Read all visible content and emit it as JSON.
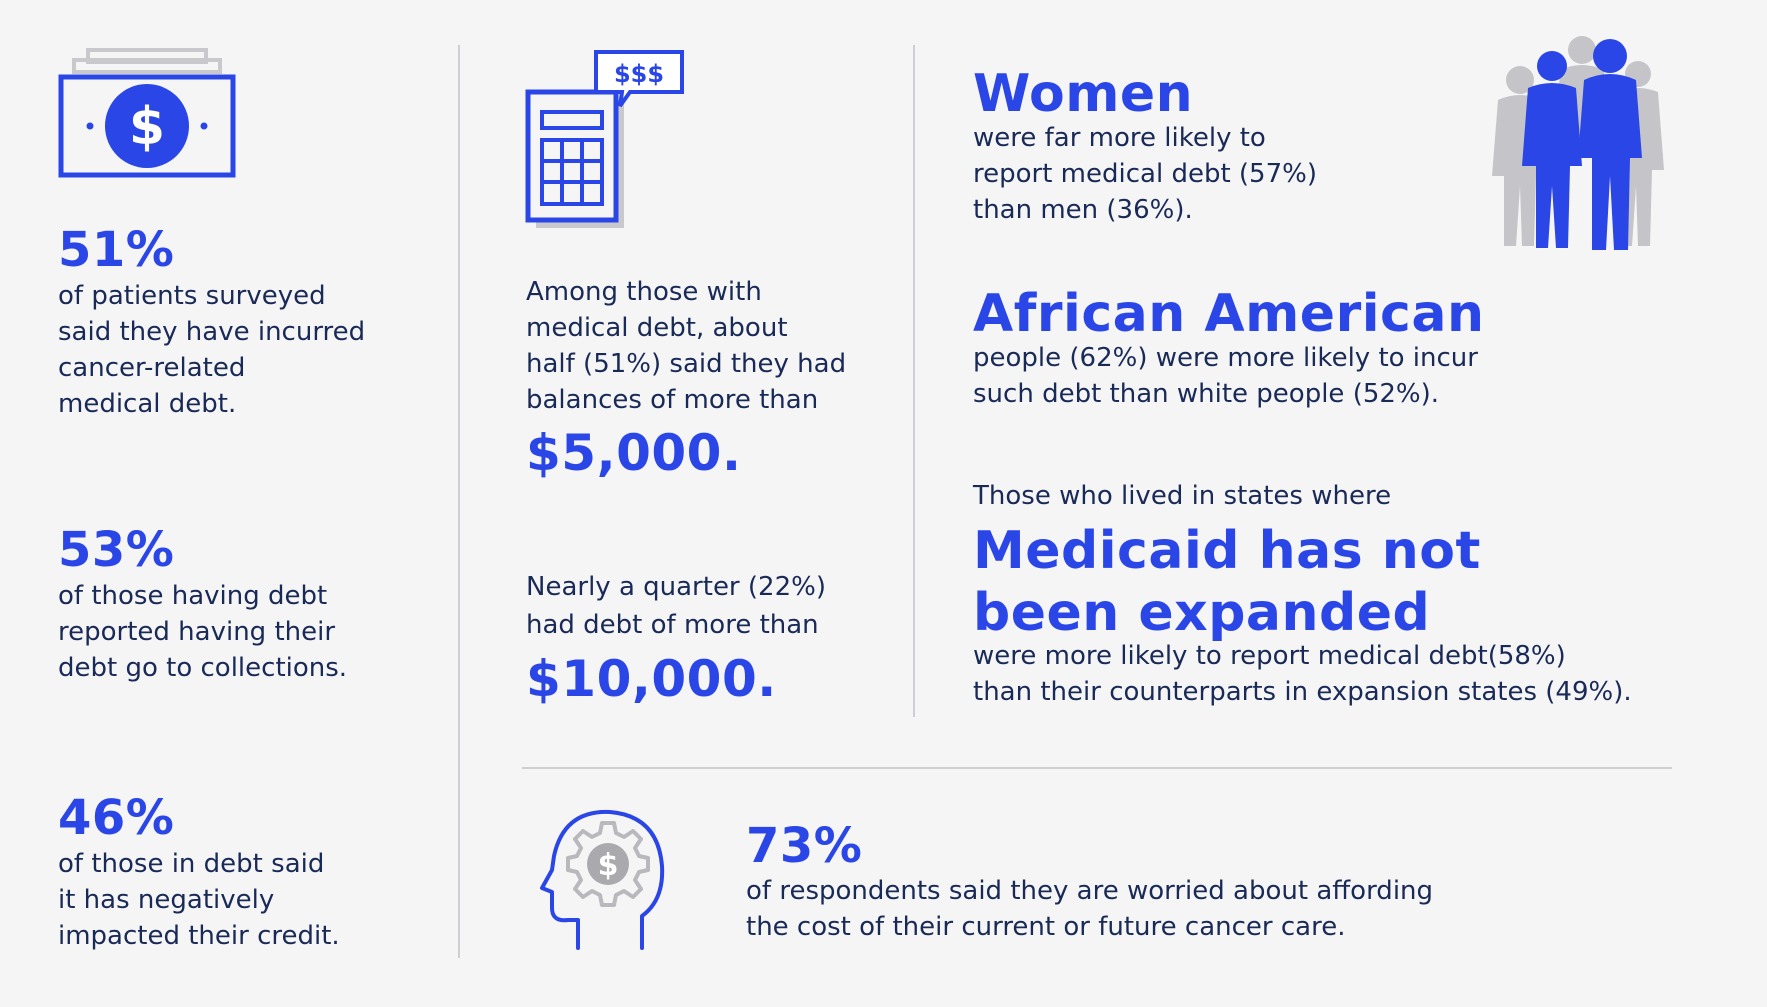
{
  "accent_color": "#2a46e6",
  "text_color": "#1a2a57",
  "col1": {
    "stat1": {
      "value": "51%",
      "text": "of patients surveyed\nsaid they have incurred\ncancer-related\nmedical debt."
    },
    "stat2": {
      "value": "53%",
      "text": "of those having debt\nreported having their\ndebt go to collections."
    },
    "stat3": {
      "value": "46%",
      "text": "of those in debt said\nit has negatively\nimpacted their credit."
    }
  },
  "col2": {
    "calc_bubble": "$$$",
    "stat1": {
      "text": "Among those with\nmedical debt, about\nhalf (51%) said they had\nbalances of more than",
      "value": "$5,000."
    },
    "stat2": {
      "text": "Nearly a quarter (22%)\nhad debt of more than",
      "value": "$10,000."
    }
  },
  "col3": {
    "women": {
      "title": "Women",
      "text": "were far more likely to\nreport medical debt (57%)\nthan men (36%)."
    },
    "african_american": {
      "title": "African American",
      "text": "people (62%) were more likely to incur\nsuch debt than white people (52%)."
    },
    "medicaid": {
      "intro": "Those who lived in states where",
      "title": "Medicaid has not\nbeen expanded",
      "text": "were more likely to report medical debt(58%)\nthan their counterparts in expansion states (49%)."
    }
  },
  "bottom": {
    "value": "73%",
    "text": "of respondents said they are worried about affording\nthe cost of their current or future cancer care."
  },
  "icons": [
    "money-bill-icon",
    "calculator-icon",
    "people-group-icon",
    "head-gear-dollar-icon"
  ]
}
